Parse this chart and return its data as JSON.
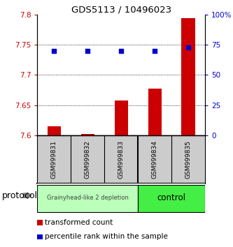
{
  "title": "GDS5113 / 10496023",
  "samples": [
    "GSM999831",
    "GSM999832",
    "GSM999833",
    "GSM999834",
    "GSM999835"
  ],
  "bar_values": [
    7.615,
    7.602,
    7.658,
    7.677,
    7.795
  ],
  "bar_base": 7.6,
  "percentile_values": [
    70,
    70,
    70,
    70,
    73
  ],
  "percentile_scale_min": 0,
  "percentile_scale_max": 100,
  "ylim_left": [
    7.6,
    7.8
  ],
  "yticks_left": [
    7.6,
    7.65,
    7.7,
    7.75,
    7.8
  ],
  "yticks_right": [
    0,
    25,
    50,
    75,
    100
  ],
  "bar_color": "#cc0000",
  "dot_color": "#0000cc",
  "grid_yticks": [
    7.65,
    7.7,
    7.75
  ],
  "group1_label": "Grainyhead-like 2 depletion",
  "group2_label": "control",
  "group1_color": "#bbffbb",
  "group2_color": "#44ee44",
  "protocol_label": "protocol",
  "legend_bar_label": "transformed count",
  "legend_dot_label": "percentile rank within the sample",
  "left_tick_color": "#cc0000",
  "right_tick_color": "#0000cc",
  "sample_bg_color": "#cccccc",
  "background_color": "#ffffff"
}
